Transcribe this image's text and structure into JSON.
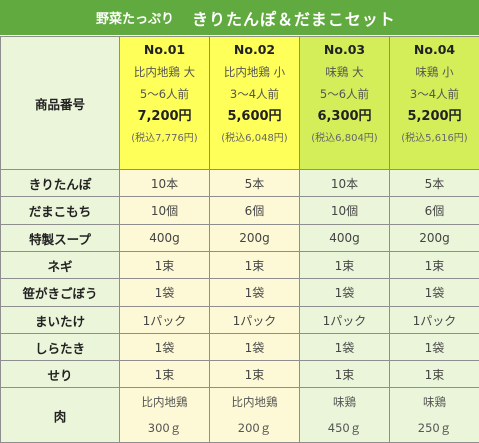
{
  "banner": {
    "sub": "野菜たっぷり",
    "main": "きりたんぽ＆だまこセット"
  },
  "header_row_label": "商品番号",
  "products": [
    {
      "no": "No.01",
      "line1": "比内地鶏 大",
      "line2": "5～6人前",
      "price": "7,200円",
      "tax": "(税込7,776円)"
    },
    {
      "no": "No.02",
      "line1": "比内地鶏 小",
      "line2": "3～4人前",
      "price": "5,600円",
      "tax": "(税込6,048円)"
    },
    {
      "no": "No.03",
      "line1": "味鶏 大",
      "line2": "5～6人前",
      "price": "6,300円",
      "tax": "(税込6,804円)"
    },
    {
      "no": "No.04",
      "line1": "味鶏 小",
      "line2": "3～4人前",
      "price": "5,200円",
      "tax": "(税込5,616円)"
    }
  ],
  "rows": [
    {
      "label": "きりたんぽ",
      "values": [
        "10本",
        "5本",
        "10本",
        "5本"
      ]
    },
    {
      "label": "だまこもち",
      "values": [
        "10個",
        "6個",
        "10個",
        "6個"
      ]
    },
    {
      "label": "特製スープ",
      "values": [
        "400g",
        "200g",
        "400g",
        "200g"
      ]
    },
    {
      "label": "ネギ",
      "values": [
        "1束",
        "1束",
        "1束",
        "1束"
      ]
    },
    {
      "label": "笹がきごぼう",
      "values": [
        "1袋",
        "1袋",
        "1袋",
        "1袋"
      ]
    },
    {
      "label": "まいたけ",
      "values": [
        "1パック",
        "1パック",
        "1パック",
        "1パック"
      ]
    },
    {
      "label": "しらたき",
      "values": [
        "1袋",
        "1袋",
        "1袋",
        "1袋"
      ]
    },
    {
      "label": "せり",
      "values": [
        "1束",
        "1束",
        "1束",
        "1束"
      ]
    }
  ],
  "meat": {
    "label": "肉",
    "values": [
      {
        "type": "比内地鶏",
        "amount": "300ｇ"
      },
      {
        "type": "比内地鶏",
        "amount": "200ｇ"
      },
      {
        "type": "味鶏",
        "amount": "450ｇ"
      },
      {
        "type": "味鶏",
        "amount": "250ｇ"
      }
    ]
  },
  "colors": {
    "banner": "#61aa3f",
    "label_column": "#ebf5d9",
    "highlight_yellow": "#ffff59",
    "highlight_lime": "#d4ee5a",
    "cream": "#fdf9d6",
    "grid": "#8e8e8e"
  }
}
